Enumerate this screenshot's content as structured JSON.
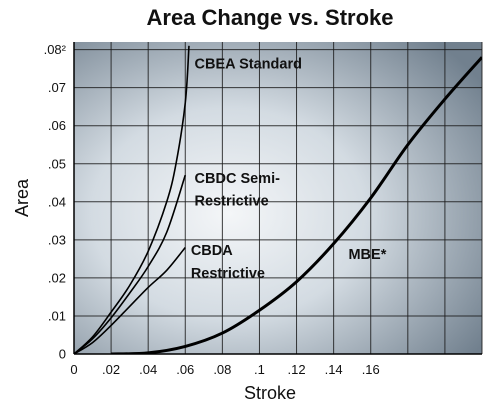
{
  "chart_data": {
    "type": "line",
    "title": "Area Change vs. Stroke",
    "xlabel": "Stroke",
    "ylabel": "Area",
    "xlim": [
      0,
      0.22
    ],
    "ylim": [
      0,
      0.082
    ],
    "grid": true,
    "x_ticks": [
      0,
      0.02,
      0.04,
      0.06,
      0.08,
      0.1,
      0.12,
      0.14,
      0.16
    ],
    "x_tick_labels": [
      "0",
      ".02",
      ".04",
      ".06",
      ".08",
      ".1",
      ".12",
      ".14",
      ".16"
    ],
    "y_ticks": [
      0,
      0.01,
      0.02,
      0.03,
      0.04,
      0.05,
      0.06,
      0.07,
      0.08
    ],
    "y_tick_labels": [
      "0",
      ".01",
      ".02",
      ".03",
      ".04",
      ".05",
      ".06",
      ".07",
      ".08²"
    ],
    "series": [
      {
        "name": "CBEA Standard",
        "x": [
          0,
          0.01,
          0.02,
          0.03,
          0.04,
          0.05,
          0.055,
          0.06,
          0.062
        ],
        "y": [
          0,
          0.0045,
          0.011,
          0.018,
          0.027,
          0.04,
          0.05,
          0.066,
          0.081
        ]
      },
      {
        "name": "CBDC Semi-Restrictive",
        "x": [
          0,
          0.01,
          0.02,
          0.03,
          0.04,
          0.05,
          0.06
        ],
        "y": [
          0,
          0.004,
          0.0095,
          0.016,
          0.023,
          0.032,
          0.047
        ]
      },
      {
        "name": "CBDA Restrictive",
        "x": [
          0,
          0.01,
          0.02,
          0.03,
          0.04,
          0.05,
          0.06
        ],
        "y": [
          0,
          0.003,
          0.0075,
          0.0125,
          0.0175,
          0.022,
          0.028
        ]
      },
      {
        "name": "MBE*",
        "x": [
          0.02,
          0.04,
          0.06,
          0.08,
          0.1,
          0.12,
          0.14,
          0.16,
          0.18,
          0.2,
          0.22
        ],
        "y": [
          0,
          0.0003,
          0.002,
          0.0055,
          0.0115,
          0.019,
          0.029,
          0.041,
          0.055,
          0.067,
          0.078
        ]
      }
    ],
    "annotations": [
      {
        "text": "CBEA Standard",
        "x": 0.065,
        "y": 0.075
      },
      {
        "text": "CBDC Semi-",
        "x": 0.065,
        "y": 0.045
      },
      {
        "text": "Restrictive",
        "x": 0.065,
        "y": 0.039
      },
      {
        "text": "CBDA",
        "x": 0.063,
        "y": 0.026
      },
      {
        "text": "Restrictive",
        "x": 0.063,
        "y": 0.02
      },
      {
        "text": "MBE*",
        "x": 0.148,
        "y": 0.025
      }
    ],
    "colors": {
      "line": "#000000",
      "bg_light": "#f2f5f8",
      "bg_mid": "#b8c4cf",
      "bg_dark": "#6e7d8b"
    }
  }
}
